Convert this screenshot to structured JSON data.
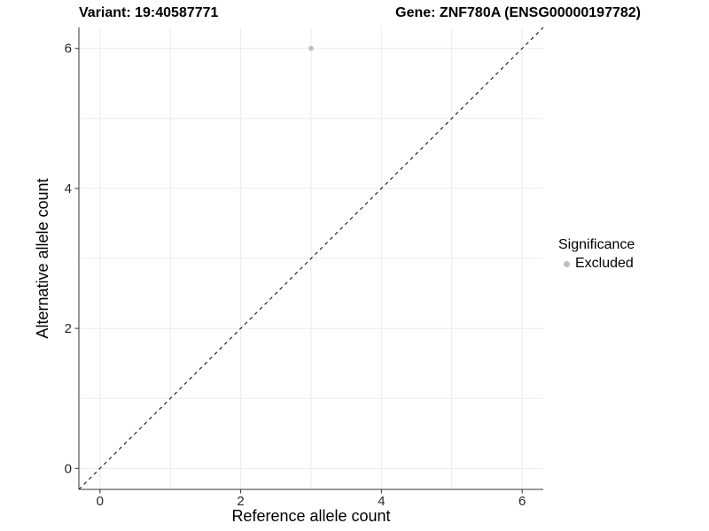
{
  "header": {
    "title_left": "Variant: 19:40587771",
    "title_right": "Gene: ZNF780A (ENSG00000197782)"
  },
  "chart_data": {
    "type": "scatter",
    "xlabel": "Reference allele count",
    "ylabel": "Alternative allele count",
    "xlim": [
      -0.3,
      6.3
    ],
    "ylim": [
      -0.3,
      6.3
    ],
    "x_ticks": [
      0,
      2,
      4,
      6
    ],
    "y_ticks": [
      0,
      2,
      4,
      6
    ],
    "x_minor_ticks": [
      1,
      3,
      5
    ],
    "y_minor_ticks": [
      1,
      3,
      5
    ],
    "grid": "on",
    "identity_line": {
      "slope": 1,
      "intercept": 0,
      "style": "dashed",
      "color": "#000000"
    },
    "series": [
      {
        "name": "Excluded",
        "color": "#bebebe",
        "marker": "circle",
        "points": [
          {
            "x": 3,
            "y": 6
          }
        ]
      }
    ],
    "legend": {
      "title": "Significance",
      "position": "right",
      "items": [
        {
          "label": "Excluded",
          "color": "#bebebe",
          "marker": "circle"
        }
      ]
    },
    "colors": {
      "grid_major": "#ebebeb",
      "grid_minor": "#ebebeb",
      "axis_line": "#333333",
      "tick_mark": "#333333",
      "tick_text": "#262626"
    }
  }
}
